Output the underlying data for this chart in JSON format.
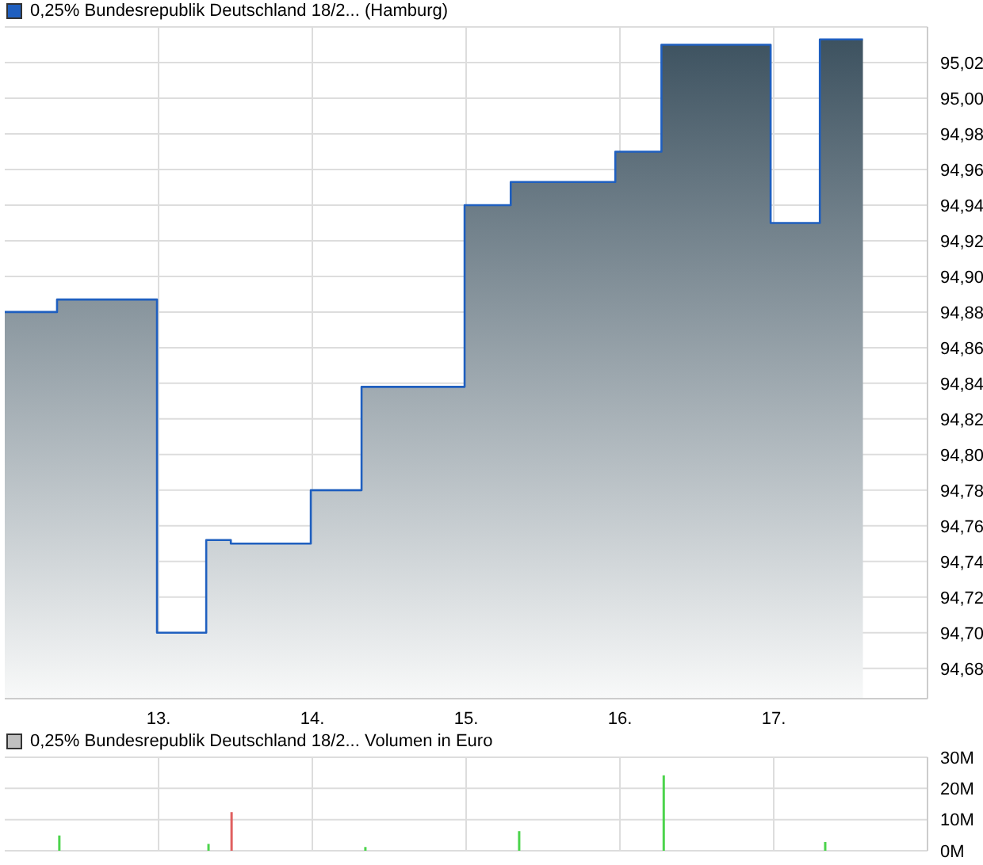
{
  "chart_data": [
    {
      "type": "area",
      "legend": "top left",
      "grid": true,
      "x": [
        12.0,
        12.34,
        12.34,
        12.99,
        12.99,
        13.31,
        13.31,
        13.47,
        13.47,
        13.99,
        13.99,
        14.32,
        14.32,
        14.99,
        14.99,
        15.29,
        15.29,
        15.97,
        15.97,
        16.27,
        16.27,
        16.98,
        16.98,
        17.3,
        17.3,
        17.58
      ],
      "series": [
        {
          "name": "0,25% Bundesrepublik Deutschland 18/2... (Hamburg)",
          "color": "#1f5fbf",
          "values": [
            94.88,
            94.88,
            94.887,
            94.887,
            94.7,
            94.7,
            94.752,
            94.752,
            94.75,
            94.75,
            94.78,
            94.78,
            94.838,
            94.838,
            94.94,
            94.94,
            94.953,
            94.953,
            94.97,
            94.97,
            95.03,
            95.03,
            94.93,
            94.93,
            95.033,
            95.033
          ]
        }
      ],
      "xlim": [
        12,
        18
      ],
      "xticks": [
        {
          "value": 13,
          "label": "13."
        },
        {
          "value": 14,
          "label": "14."
        },
        {
          "value": 15,
          "label": "15."
        },
        {
          "value": 16,
          "label": "16."
        },
        {
          "value": 17,
          "label": "17."
        }
      ],
      "ylim": [
        94.663,
        95.04
      ],
      "yticks": [
        {
          "value": 94.68,
          "label": "94,68"
        },
        {
          "value": 94.7,
          "label": "94,70"
        },
        {
          "value": 94.72,
          "label": "94,72"
        },
        {
          "value": 94.74,
          "label": "94,74"
        },
        {
          "value": 94.76,
          "label": "94,76"
        },
        {
          "value": 94.78,
          "label": "94,78"
        },
        {
          "value": 94.8,
          "label": "94,80"
        },
        {
          "value": 94.82,
          "label": "94,82"
        },
        {
          "value": 94.84,
          "label": "94,84"
        },
        {
          "value": 94.86,
          "label": "94,86"
        },
        {
          "value": 94.88,
          "label": "94,88"
        },
        {
          "value": 94.9,
          "label": "94,90"
        },
        {
          "value": 94.92,
          "label": "94,92"
        },
        {
          "value": 94.94,
          "label": "94,94"
        },
        {
          "value": 94.96,
          "label": "94,96"
        },
        {
          "value": 94.98,
          "label": "94,98"
        },
        {
          "value": 95.0,
          "label": "95,00"
        },
        {
          "value": 95.02,
          "label": "95,02"
        }
      ]
    },
    {
      "type": "bar",
      "legend": "top left",
      "grid": true,
      "tick_labels": "y",
      "x": [
        12.35,
        13.32,
        13.47,
        14.34,
        15.34,
        16.28,
        17.33
      ],
      "series": [
        {
          "name": "0,25% Bundesrepublik Deutschland 18/2... Volumen in Euro",
          "color": "#c0c0c0",
          "values": [
            4.9,
            2.2,
            12.4,
            1.2,
            6.3,
            24.2,
            2.8
          ],
          "colors": [
            "#4cd44c",
            "#4cd44c",
            "#e06060",
            "#4cd44c",
            "#4cd44c",
            "#4cd44c",
            "#4cd44c"
          ]
        }
      ],
      "xlim": [
        12,
        18
      ],
      "xticks": [
        13,
        14,
        15,
        16,
        17
      ],
      "ylim": [
        0,
        30
      ],
      "yticks": [
        {
          "value": 0,
          "label": "0M"
        },
        {
          "value": 10,
          "label": "10M"
        },
        {
          "value": 20,
          "label": "20M"
        },
        {
          "value": 30,
          "label": "30M"
        }
      ]
    }
  ]
}
